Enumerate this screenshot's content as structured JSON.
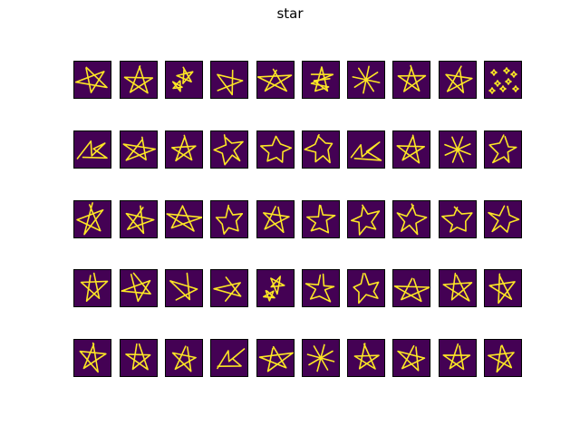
{
  "figure": {
    "title": "star",
    "subject": "star",
    "rows": 5,
    "columns": 10,
    "background_color": "#440154",
    "stroke_color": "#fde725",
    "samples": [
      {
        "shape": "star-tilted"
      },
      {
        "shape": "star"
      },
      {
        "shape": "scribble-stars"
      },
      {
        "shape": "star-open"
      },
      {
        "shape": "star-wide"
      },
      {
        "shape": "hash-star"
      },
      {
        "shape": "burst"
      },
      {
        "shape": "star"
      },
      {
        "shape": "star"
      },
      {
        "shape": "dots"
      },
      {
        "shape": "zigzag"
      },
      {
        "shape": "star-wide"
      },
      {
        "shape": "star"
      },
      {
        "shape": "star-outline"
      },
      {
        "shape": "star-outline"
      },
      {
        "shape": "star-outline"
      },
      {
        "shape": "zigzag"
      },
      {
        "shape": "star"
      },
      {
        "shape": "burst"
      },
      {
        "shape": "star-outline"
      },
      {
        "shape": "star-tilted"
      },
      {
        "shape": "star"
      },
      {
        "shape": "star-wide"
      },
      {
        "shape": "star-outline"
      },
      {
        "shape": "star"
      },
      {
        "shape": "star-outline"
      },
      {
        "shape": "star-outline"
      },
      {
        "shape": "star-outline"
      },
      {
        "shape": "star-outline"
      },
      {
        "shape": "star-outline"
      },
      {
        "shape": "star-tilted"
      },
      {
        "shape": "star-tilted"
      },
      {
        "shape": "star-open"
      },
      {
        "shape": "star-open"
      },
      {
        "shape": "scribble-stars"
      },
      {
        "shape": "star-outline"
      },
      {
        "shape": "star-outline"
      },
      {
        "shape": "star-wide"
      },
      {
        "shape": "star-tilted"
      },
      {
        "shape": "star"
      },
      {
        "shape": "star-tilted"
      },
      {
        "shape": "star"
      },
      {
        "shape": "star"
      },
      {
        "shape": "zigzag"
      },
      {
        "shape": "star-wide"
      },
      {
        "shape": "burst"
      },
      {
        "shape": "star"
      },
      {
        "shape": "star"
      },
      {
        "shape": "star"
      },
      {
        "shape": "star"
      }
    ]
  }
}
